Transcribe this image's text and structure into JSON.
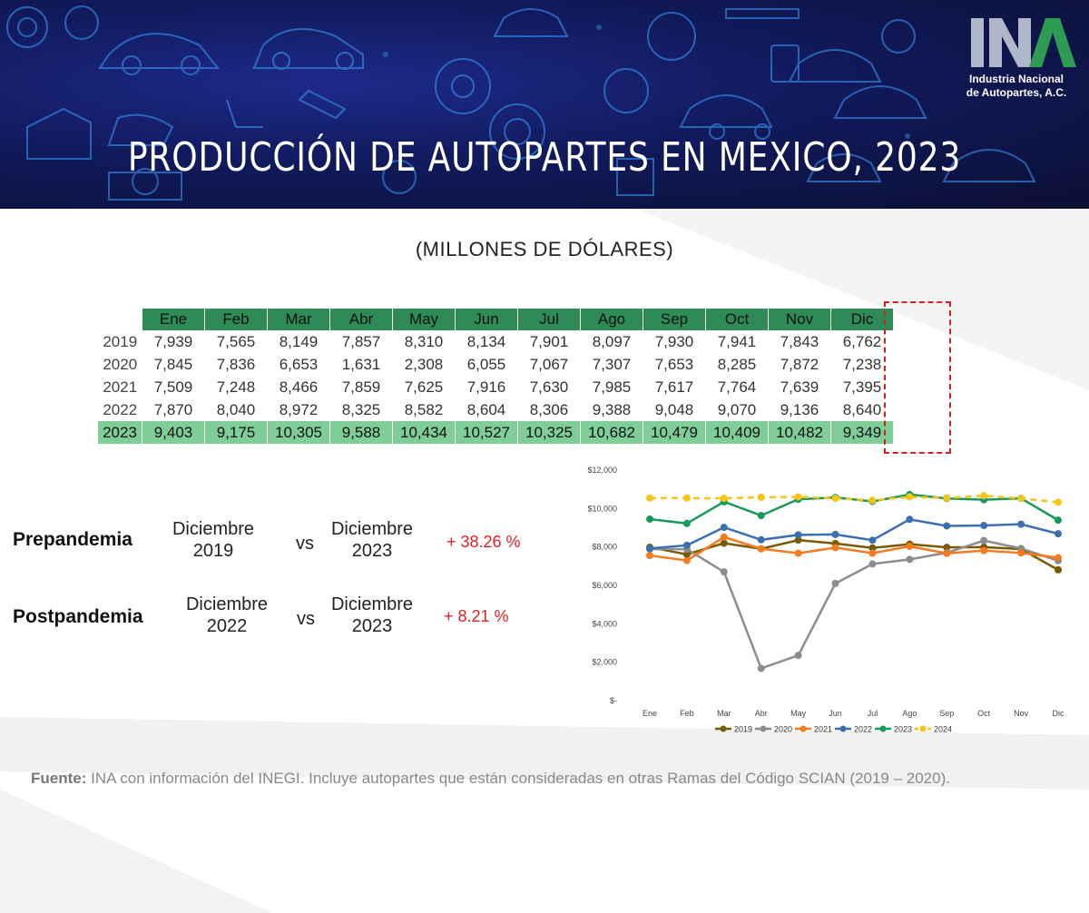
{
  "header": {
    "title": "PRODUCCIÓN DE AUTOPARTES EN MEXICO, 2023",
    "logo_text": "INA",
    "logo_line1": "Industria Nacional",
    "logo_line2": "de Autopartes, A.C."
  },
  "subtitle": "(MILLONES DE DÓLARES)",
  "table": {
    "months": [
      "Ene",
      "Feb",
      "Mar",
      "Abr",
      "May",
      "Jun",
      "Jul",
      "Ago",
      "Sep",
      "Oct",
      "Nov",
      "Dic"
    ],
    "rows": [
      {
        "year": "2019",
        "values": [
          "7,939",
          "7,565",
          "8,149",
          "7,857",
          "8,310",
          "8,134",
          "7,901",
          "8,097",
          "7,930",
          "7,941",
          "7,843",
          "6,762"
        ]
      },
      {
        "year": "2020",
        "values": [
          "7,845",
          "7,836",
          "6,653",
          "1,631",
          "2,308",
          "6,055",
          "7,067",
          "7,307",
          "7,653",
          "8,285",
          "7,872",
          "7,238"
        ]
      },
      {
        "year": "2021",
        "values": [
          "7,509",
          "7,248",
          "8,466",
          "7,859",
          "7,625",
          "7,916",
          "7,630",
          "7,985",
          "7,617",
          "7,764",
          "7,639",
          "7,395"
        ]
      },
      {
        "year": "2022",
        "values": [
          "7,870",
          "8,040",
          "8,972",
          "8,325",
          "8,582",
          "8,604",
          "8,306",
          "9,388",
          "9,048",
          "9,070",
          "9,136",
          "8,640"
        ]
      },
      {
        "year": "2023",
        "values": [
          "9,403",
          "9,175",
          "10,305",
          "9,588",
          "10,434",
          "10,527",
          "10,325",
          "10,682",
          "10,479",
          "10,409",
          "10,482",
          "9,349"
        ]
      }
    ]
  },
  "comparisons": [
    {
      "label": "Prepandemia",
      "from_line1": "Diciembre",
      "from_line2": "2019",
      "vs": "vs",
      "to_line1": "Diciembre",
      "to_line2": "2023",
      "pct": "+ 38.26 %"
    },
    {
      "label": "Postpandemia",
      "from_line1": "Diciembre",
      "from_line2": "2022",
      "vs": "vs",
      "to_line1": "Diciembre",
      "to_line2": "2023",
      "pct": "+ 8.21 %"
    }
  ],
  "source": {
    "bold": "Fuente:",
    "text": " INA con información del INEGI. Incluye autopartes que están consideradas en otras Ramas del Código SCIAN (2019 – 2020)."
  },
  "chart_data": {
    "type": "line",
    "categories": [
      "Ene",
      "Feb",
      "Mar",
      "Abr",
      "May",
      "Jun",
      "Jul",
      "Ago",
      "Sep",
      "Oct",
      "Nov",
      "Dic"
    ],
    "y_ticks": [
      "$-",
      "$2,000",
      "$4,000",
      "$6,000",
      "$8,000",
      "$10,000",
      "$12,000"
    ],
    "ylim": [
      0,
      12000
    ],
    "legend_position": "bottom",
    "series": [
      {
        "name": "2019",
        "color": "#7a5a00",
        "dashed": false,
        "values": [
          7939,
          7565,
          8149,
          7857,
          8310,
          8134,
          7901,
          8097,
          7930,
          7941,
          7843,
          6762
        ]
      },
      {
        "name": "2020",
        "color": "#8c8c8c",
        "dashed": false,
        "values": [
          7845,
          7836,
          6653,
          1631,
          2308,
          6055,
          7067,
          7307,
          7653,
          8285,
          7872,
          7238
        ]
      },
      {
        "name": "2021",
        "color": "#f47b20",
        "dashed": false,
        "values": [
          7509,
          7248,
          8466,
          7859,
          7625,
          7916,
          7630,
          7985,
          7617,
          7764,
          7639,
          7395
        ]
      },
      {
        "name": "2022",
        "color": "#3a6fb0",
        "dashed": false,
        "values": [
          7870,
          8040,
          8972,
          8325,
          8582,
          8604,
          8306,
          9388,
          9048,
          9070,
          9136,
          8640
        ]
      },
      {
        "name": "2023",
        "color": "#1a9a5a",
        "dashed": false,
        "values": [
          9403,
          9175,
          10305,
          9588,
          10434,
          10527,
          10325,
          10682,
          10479,
          10409,
          10482,
          9349
        ]
      },
      {
        "name": "2024",
        "color": "#f5c518",
        "dashed": true,
        "values": [
          10500,
          10500,
          10480,
          10540,
          10560,
          10480,
          10380,
          10560,
          10500,
          10620,
          10480,
          10280
        ]
      }
    ]
  }
}
